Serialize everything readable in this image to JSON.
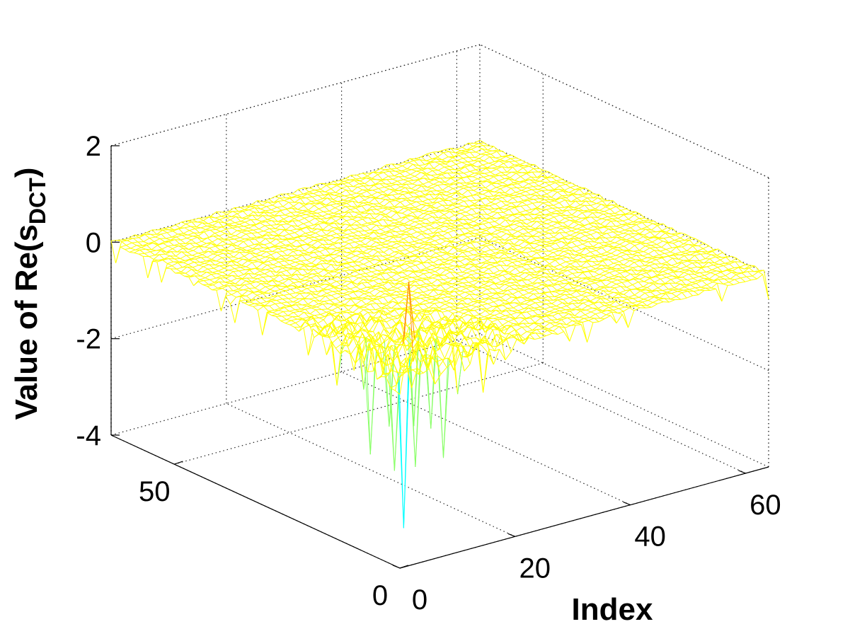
{
  "chart_data": {
    "type": "surface",
    "title": "",
    "xlabel": "Index",
    "ylabel": "",
    "zlabel_main": "Value of Re(s",
    "zlabel_sub": "DCT",
    "zlabel_close": ")",
    "xlim": [
      0,
      64
    ],
    "ylim": [
      0,
      64
    ],
    "zlim": [
      -4,
      2
    ],
    "x_ticks": [
      {
        "value": 0,
        "label": "0"
      },
      {
        "value": 20,
        "label": "20"
      },
      {
        "value": 40,
        "label": "40"
      },
      {
        "value": 60,
        "label": "60"
      }
    ],
    "y_ticks": [
      {
        "value": 0,
        "label": "0"
      },
      {
        "value": 50,
        "label": "50"
      }
    ],
    "z_ticks": [
      {
        "value": -4,
        "label": "-4"
      },
      {
        "value": -2,
        "label": "-2"
      },
      {
        "value": 0,
        "label": "0"
      },
      {
        "value": 2,
        "label": "2"
      }
    ],
    "grid": true,
    "grid_n": 64,
    "baseline_value": 0,
    "colormap": [
      "#0000aa",
      "#00aaff",
      "#00ffff",
      "#88ff66",
      "#ffff00",
      "#ff8800",
      "#aa0000"
    ],
    "peaks": [
      {
        "x": 3,
        "y": 3,
        "z": -3.4
      },
      {
        "x": 3,
        "y": 5,
        "z": -2.3
      },
      {
        "x": 5,
        "y": 3,
        "z": -2.2
      },
      {
        "x": 11,
        "y": 11,
        "z": -1.9
      },
      {
        "x": 2,
        "y": 9,
        "z": -2.1
      },
      {
        "x": 9,
        "y": 2,
        "z": -2.1
      },
      {
        "x": 7,
        "y": 7,
        "z": 1.4
      },
      {
        "x": 6,
        "y": 10,
        "z": -1.7
      },
      {
        "x": 10,
        "y": 6,
        "z": -1.7
      },
      {
        "x": 13,
        "y": 4,
        "z": -1.0
      },
      {
        "x": 4,
        "y": 13,
        "z": -1.0
      },
      {
        "x": 15,
        "y": 1,
        "z": -0.9
      },
      {
        "x": 1,
        "y": 15,
        "z": -0.9
      }
    ]
  }
}
